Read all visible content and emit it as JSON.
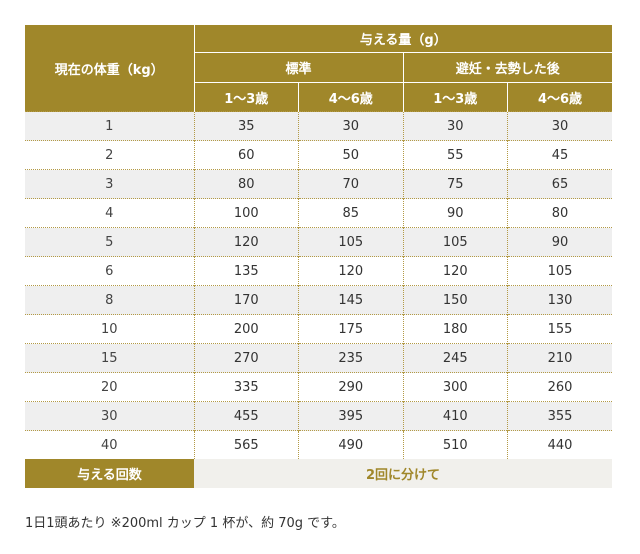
{
  "table": {
    "weight_header": "現在の体重（kg）",
    "amount_header": "与える量（g）",
    "group_standard": "標準",
    "group_neutered": "避妊・去勢した後",
    "age_cols": [
      "1〜3歳",
      "4〜6歳",
      "1〜3歳",
      "4〜6歳"
    ],
    "rows": [
      [
        "1",
        "35",
        "30",
        "30",
        "30"
      ],
      [
        "2",
        "60",
        "50",
        "55",
        "45"
      ],
      [
        "3",
        "80",
        "70",
        "75",
        "65"
      ],
      [
        "4",
        "100",
        "85",
        "90",
        "80"
      ],
      [
        "5",
        "120",
        "105",
        "105",
        "90"
      ],
      [
        "6",
        "135",
        "120",
        "120",
        "105"
      ],
      [
        "8",
        "170",
        "145",
        "150",
        "130"
      ],
      [
        "10",
        "200",
        "175",
        "180",
        "155"
      ],
      [
        "15",
        "270",
        "235",
        "245",
        "210"
      ],
      [
        "20",
        "335",
        "290",
        "300",
        "260"
      ],
      [
        "30",
        "455",
        "395",
        "410",
        "355"
      ],
      [
        "40",
        "565",
        "490",
        "510",
        "440"
      ]
    ],
    "footer_label": "与える回数",
    "footer_value": "2回に分けて"
  },
  "note": "1日1頭あたり ※200ml カップ 1 杯が、約 70g です。",
  "colors": {
    "header_bg": "#a0872a",
    "stripe_bg": "#efefef",
    "divider": "#b39a45"
  }
}
